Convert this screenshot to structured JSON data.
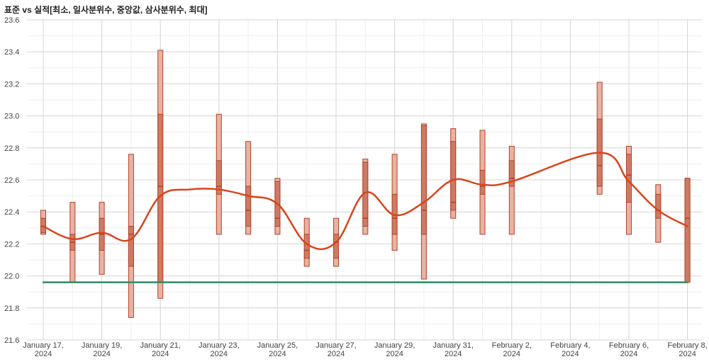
{
  "title": "표준 vs 실적[최소, 일사분위수, 중앙값, 삼사분위수, 최대]",
  "chart_data": {
    "type": "candlestick-box",
    "title": "표준 vs 실적[최소, 일사분위수, 중앙값, 삼사분위수, 최대]",
    "xlabel": "",
    "ylabel": "",
    "ylim": [
      21.6,
      23.6
    ],
    "y_ticks": [
      "21.6",
      "21.8",
      "22.0",
      "22.2",
      "22.4",
      "22.6",
      "22.8",
      "23.0",
      "23.2",
      "23.4",
      "23.6"
    ],
    "x_range": [
      "2024-01-16",
      "2024-02-08"
    ],
    "x_ticks": [
      {
        "date": "2024-01-17",
        "l1": "January 17,",
        "l2": "2024"
      },
      {
        "date": "2024-01-19",
        "l1": "January 19,",
        "l2": "2024"
      },
      {
        "date": "2024-01-21",
        "l1": "January 21,",
        "l2": "2024"
      },
      {
        "date": "2024-01-23",
        "l1": "January 23,",
        "l2": "2024"
      },
      {
        "date": "2024-01-25",
        "l1": "January 25,",
        "l2": "2024"
      },
      {
        "date": "2024-01-27",
        "l1": "January 27,",
        "l2": "2024"
      },
      {
        "date": "2024-01-29",
        "l1": "January 29,",
        "l2": "2024"
      },
      {
        "date": "2024-01-31",
        "l1": "January 31,",
        "l2": "2024"
      },
      {
        "date": "2024-02-02",
        "l1": "February 2,",
        "l2": "2024"
      },
      {
        "date": "2024-02-04",
        "l1": "February 4,",
        "l2": "2024"
      },
      {
        "date": "2024-02-06",
        "l1": "February 6,",
        "l2": "2024"
      },
      {
        "date": "2024-02-08",
        "l1": "February 8,",
        "l2": "2024"
      }
    ],
    "grid": true,
    "boxes": [
      {
        "date": "2024-01-17",
        "min": 22.26,
        "q1": 22.27,
        "median": 22.31,
        "q3": 22.36,
        "max": 22.41
      },
      {
        "date": "2024-01-18",
        "min": 21.96,
        "q1": 22.16,
        "median": 22.21,
        "q3": 22.26,
        "max": 22.46
      },
      {
        "date": "2024-01-19",
        "min": 22.01,
        "q1": 22.16,
        "median": 22.26,
        "q3": 22.36,
        "max": 22.46
      },
      {
        "date": "2024-01-20",
        "min": 21.74,
        "q1": 22.06,
        "median": 22.26,
        "q3": 22.31,
        "max": 22.76
      },
      {
        "date": "2024-01-21",
        "min": 21.86,
        "q1": 21.96,
        "median": 22.56,
        "q3": 23.01,
        "max": 23.41
      },
      {
        "date": "2024-01-23",
        "min": 22.26,
        "q1": 22.51,
        "median": 22.56,
        "q3": 22.72,
        "max": 23.01
      },
      {
        "date": "2024-01-24",
        "min": 22.26,
        "q1": 22.31,
        "median": 22.41,
        "q3": 22.56,
        "max": 22.84
      },
      {
        "date": "2024-01-25",
        "min": 22.26,
        "q1": 22.31,
        "median": 22.36,
        "q3": 22.59,
        "max": 22.61
      },
      {
        "date": "2024-01-26",
        "min": 22.06,
        "q1": 22.11,
        "median": 22.16,
        "q3": 22.26,
        "max": 22.36
      },
      {
        "date": "2024-01-27",
        "min": 22.06,
        "q1": 22.11,
        "median": 22.21,
        "q3": 22.26,
        "max": 22.36
      },
      {
        "date": "2024-01-28",
        "min": 22.26,
        "q1": 22.31,
        "median": 22.36,
        "q3": 22.71,
        "max": 22.73
      },
      {
        "date": "2024-01-29",
        "min": 22.16,
        "q1": 22.26,
        "median": 22.36,
        "q3": 22.51,
        "max": 22.76
      },
      {
        "date": "2024-01-30",
        "min": 21.98,
        "q1": 22.26,
        "median": 22.41,
        "q3": 22.94,
        "max": 22.95
      },
      {
        "date": "2024-01-31",
        "min": 22.36,
        "q1": 22.41,
        "median": 22.46,
        "q3": 22.84,
        "max": 22.92
      },
      {
        "date": "2024-02-01",
        "min": 22.26,
        "q1": 22.51,
        "median": 22.56,
        "q3": 22.66,
        "max": 22.91
      },
      {
        "date": "2024-02-02",
        "min": 22.26,
        "q1": 22.56,
        "median": 22.61,
        "q3": 22.72,
        "max": 22.81
      },
      {
        "date": "2024-02-05",
        "min": 22.51,
        "q1": 22.56,
        "median": 22.69,
        "q3": 22.98,
        "max": 23.21
      },
      {
        "date": "2024-02-06",
        "min": 22.26,
        "q1": 22.46,
        "median": 22.63,
        "q3": 22.76,
        "max": 22.81
      },
      {
        "date": "2024-02-07",
        "min": 22.21,
        "q1": 22.36,
        "median": 22.41,
        "q3": 22.51,
        "max": 22.57
      },
      {
        "date": "2024-02-08",
        "min": 21.96,
        "q1": 21.96,
        "median": 22.36,
        "q3": 22.61,
        "max": 22.61
      }
    ],
    "series": [
      {
        "type": "spline",
        "color": "#d9441c",
        "points": [
          {
            "date": "2024-01-17",
            "y": 22.31
          },
          {
            "date": "2024-01-18",
            "y": 22.23
          },
          {
            "date": "2024-01-19",
            "y": 22.27
          },
          {
            "date": "2024-01-20",
            "y": 22.23
          },
          {
            "date": "2024-01-21",
            "y": 22.5
          },
          {
            "date": "2024-01-22",
            "y": 22.54
          },
          {
            "date": "2024-01-23",
            "y": 22.54
          },
          {
            "date": "2024-01-24",
            "y": 22.5
          },
          {
            "date": "2024-01-25",
            "y": 22.45
          },
          {
            "date": "2024-01-26",
            "y": 22.2
          },
          {
            "date": "2024-01-27",
            "y": 22.21
          },
          {
            "date": "2024-01-28",
            "y": 22.52
          },
          {
            "date": "2024-01-29",
            "y": 22.38
          },
          {
            "date": "2024-01-30",
            "y": 22.46
          },
          {
            "date": "2024-01-31",
            "y": 22.6
          },
          {
            "date": "2024-02-01",
            "y": 22.57
          },
          {
            "date": "2024-02-02",
            "y": 22.59
          },
          {
            "date": "2024-02-05",
            "y": 22.77
          },
          {
            "date": "2024-02-06",
            "y": 22.59
          },
          {
            "date": "2024-02-07",
            "y": 22.41
          },
          {
            "date": "2024-02-08",
            "y": 22.31
          }
        ]
      },
      {
        "type": "line",
        "color": "#2e8b6a",
        "points": [
          {
            "date": "2024-01-17",
            "y": 21.96
          },
          {
            "date": "2024-02-08",
            "y": 21.96
          }
        ]
      }
    ],
    "colors": {
      "box_outer_fill": "#e9b2a3",
      "box_inner_fill": "#cf7a62",
      "box_stroke": "#b0432a"
    }
  }
}
